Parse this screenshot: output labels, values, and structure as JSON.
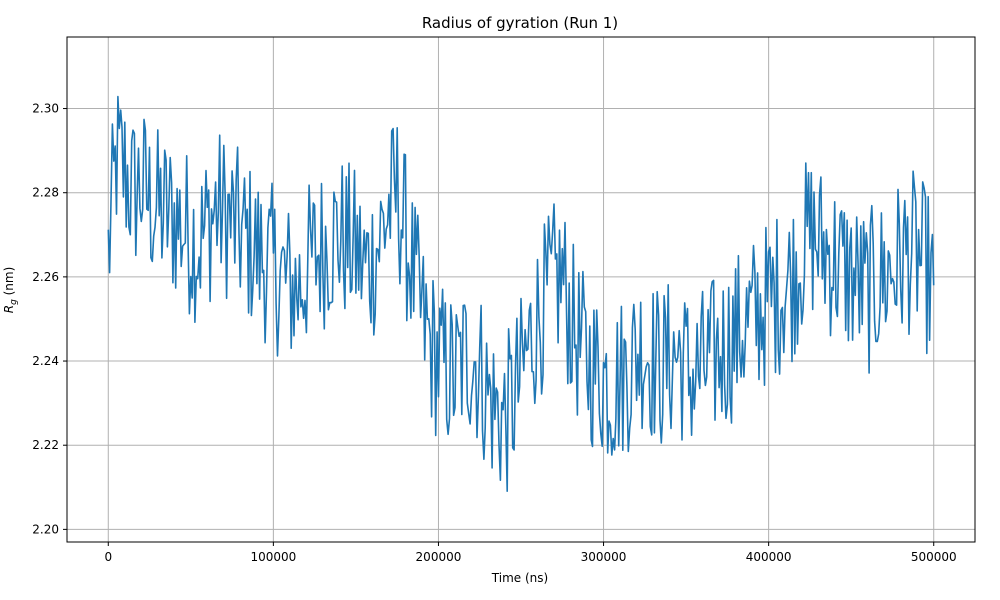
{
  "chart_data": {
    "type": "line",
    "title": "Radius of gyration (Run 1)",
    "xlabel": "Time (ns)",
    "ylabel_main": "R",
    "ylabel_sub": "g",
    "ylabel_unit": " (nm)",
    "xlim": [
      -25000,
      525000
    ],
    "ylim": [
      2.197,
      2.317
    ],
    "x_ticks": [
      0,
      100000,
      200000,
      300000,
      400000,
      500000
    ],
    "x_tick_labels": [
      "0",
      "100000",
      "200000",
      "300000",
      "400000",
      "500000"
    ],
    "y_ticks": [
      2.2,
      2.22,
      2.24,
      2.26,
      2.28,
      2.3
    ],
    "y_tick_labels": [
      "2.20",
      "2.22",
      "2.24",
      "2.26",
      "2.28",
      "2.30"
    ],
    "grid": true,
    "series": [
      {
        "color": "#1f77b4",
        "x": [
          0,
          5000,
          10000,
          15000,
          20000,
          25000,
          30000,
          35000,
          40000,
          45000,
          50000,
          55000,
          60000,
          65000,
          70000,
          75000,
          80000,
          85000,
          90000,
          95000,
          100000,
          105000,
          110000,
          115000,
          120000,
          125000,
          130000,
          135000,
          140000,
          145000,
          150000,
          155000,
          160000,
          165000,
          170000,
          175000,
          180000,
          185000,
          190000,
          195000,
          200000,
          205000,
          210000,
          215000,
          220000,
          225000,
          230000,
          235000,
          240000,
          245000,
          250000,
          255000,
          260000,
          265000,
          270000,
          275000,
          280000,
          285000,
          290000,
          295000,
          300000,
          305000,
          310000,
          315000,
          320000,
          325000,
          330000,
          335000,
          340000,
          345000,
          350000,
          355000,
          360000,
          365000,
          370000,
          375000,
          380000,
          385000,
          390000,
          395000,
          400000,
          405000,
          410000,
          415000,
          420000,
          425000,
          430000,
          435000,
          440000,
          445000,
          450000,
          455000,
          460000,
          465000,
          470000,
          475000,
          480000,
          485000,
          490000,
          495000,
          500000
        ],
        "y": [
          2.265,
          2.288,
          2.285,
          2.28,
          2.282,
          2.278,
          2.276,
          2.275,
          2.274,
          2.272,
          2.27,
          2.268,
          2.272,
          2.276,
          2.275,
          2.273,
          2.27,
          2.268,
          2.266,
          2.264,
          2.262,
          2.26,
          2.258,
          2.257,
          2.262,
          2.265,
          2.267,
          2.269,
          2.27,
          2.268,
          2.266,
          2.262,
          2.264,
          2.27,
          2.276,
          2.28,
          2.27,
          2.26,
          2.25,
          2.244,
          2.24,
          2.238,
          2.236,
          2.24,
          2.242,
          2.238,
          2.232,
          2.228,
          2.226,
          2.23,
          2.236,
          2.244,
          2.25,
          2.254,
          2.258,
          2.26,
          2.25,
          2.244,
          2.24,
          2.238,
          2.236,
          2.234,
          2.236,
          2.238,
          2.242,
          2.244,
          2.24,
          2.238,
          2.24,
          2.242,
          2.238,
          2.236,
          2.238,
          2.24,
          2.242,
          2.244,
          2.246,
          2.248,
          2.25,
          2.252,
          2.254,
          2.256,
          2.258,
          2.26,
          2.266,
          2.27,
          2.268,
          2.266,
          2.264,
          2.262,
          2.26,
          2.258,
          2.256,
          2.258,
          2.26,
          2.262,
          2.264,
          2.266,
          2.265,
          2.262,
          2.258
        ]
      }
    ]
  }
}
